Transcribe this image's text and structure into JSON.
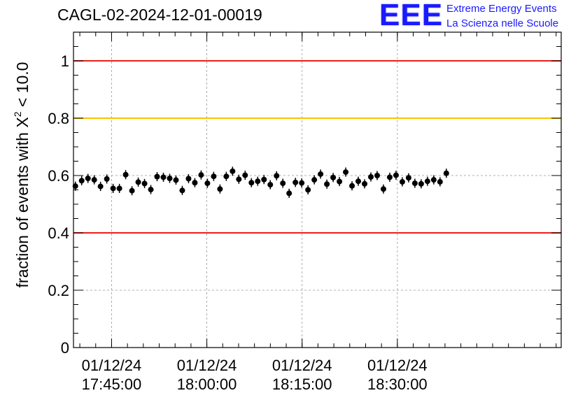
{
  "title": "CAGL-02-2024-12-01-00019",
  "logo": {
    "mark": "EEE",
    "line1": "Extreme Energy Events",
    "line2": "La Scienza nelle Scuole"
  },
  "colors": {
    "limit_red": "#e8201a",
    "limit_yellow": "#ffc000",
    "marker": "#000000",
    "grid": "#999999",
    "brand_blue": "#1a1aff"
  },
  "chart_data": {
    "type": "scatter",
    "title": "CAGL-02-2024-12-01-00019",
    "ylabel_prefix": "fraction of events with ",
    "ylabel_symbol": "X",
    "ylabel_superscript": "2",
    "ylabel_suffix": " < 10.0",
    "xlabel": "",
    "x_unit": "minutes",
    "xlim": [
      17.65,
      18.93
    ],
    "ylim": [
      0,
      1.1
    ],
    "grid": true,
    "x_ticks": [
      {
        "value": 17.75,
        "date": "01/12/24",
        "time": "17:45:00"
      },
      {
        "value": 18.0,
        "date": "01/12/24",
        "time": "18:00:00"
      },
      {
        "value": 18.25,
        "date": "01/12/24",
        "time": "18:15:00"
      },
      {
        "value": 18.5,
        "date": "01/12/24",
        "time": "18:30:00"
      }
    ],
    "y_ticks": [
      {
        "value": 0,
        "label": "0"
      },
      {
        "value": 0.2,
        "label": "0.2"
      },
      {
        "value": 0.4,
        "label": "0.4"
      },
      {
        "value": 0.6,
        "label": "0.6"
      },
      {
        "value": 0.8,
        "label": "0.8"
      },
      {
        "value": 1,
        "label": "1"
      }
    ],
    "hlines": [
      {
        "y": 1.0,
        "color": "#e8201a"
      },
      {
        "y": 0.8,
        "color": "#ffc000"
      },
      {
        "y": 0.4,
        "color": "#e8201a"
      }
    ],
    "x_start": 17.655,
    "x_step": 0.0165,
    "x_err": 0.006,
    "y_err": 0.016,
    "values": [
      0.563,
      0.582,
      0.59,
      0.585,
      0.562,
      0.588,
      0.555,
      0.555,
      0.603,
      0.547,
      0.577,
      0.572,
      0.551,
      0.596,
      0.594,
      0.59,
      0.584,
      0.548,
      0.589,
      0.575,
      0.602,
      0.573,
      0.597,
      0.553,
      0.597,
      0.615,
      0.587,
      0.601,
      0.575,
      0.58,
      0.586,
      0.568,
      0.599,
      0.573,
      0.538,
      0.576,
      0.574,
      0.55,
      0.585,
      0.605,
      0.57,
      0.593,
      0.579,
      0.612,
      0.564,
      0.58,
      0.571,
      0.595,
      0.6,
      0.553,
      0.594,
      0.601,
      0.578,
      0.592,
      0.573,
      0.571,
      0.58,
      0.585,
      0.578,
      0.608
    ]
  }
}
